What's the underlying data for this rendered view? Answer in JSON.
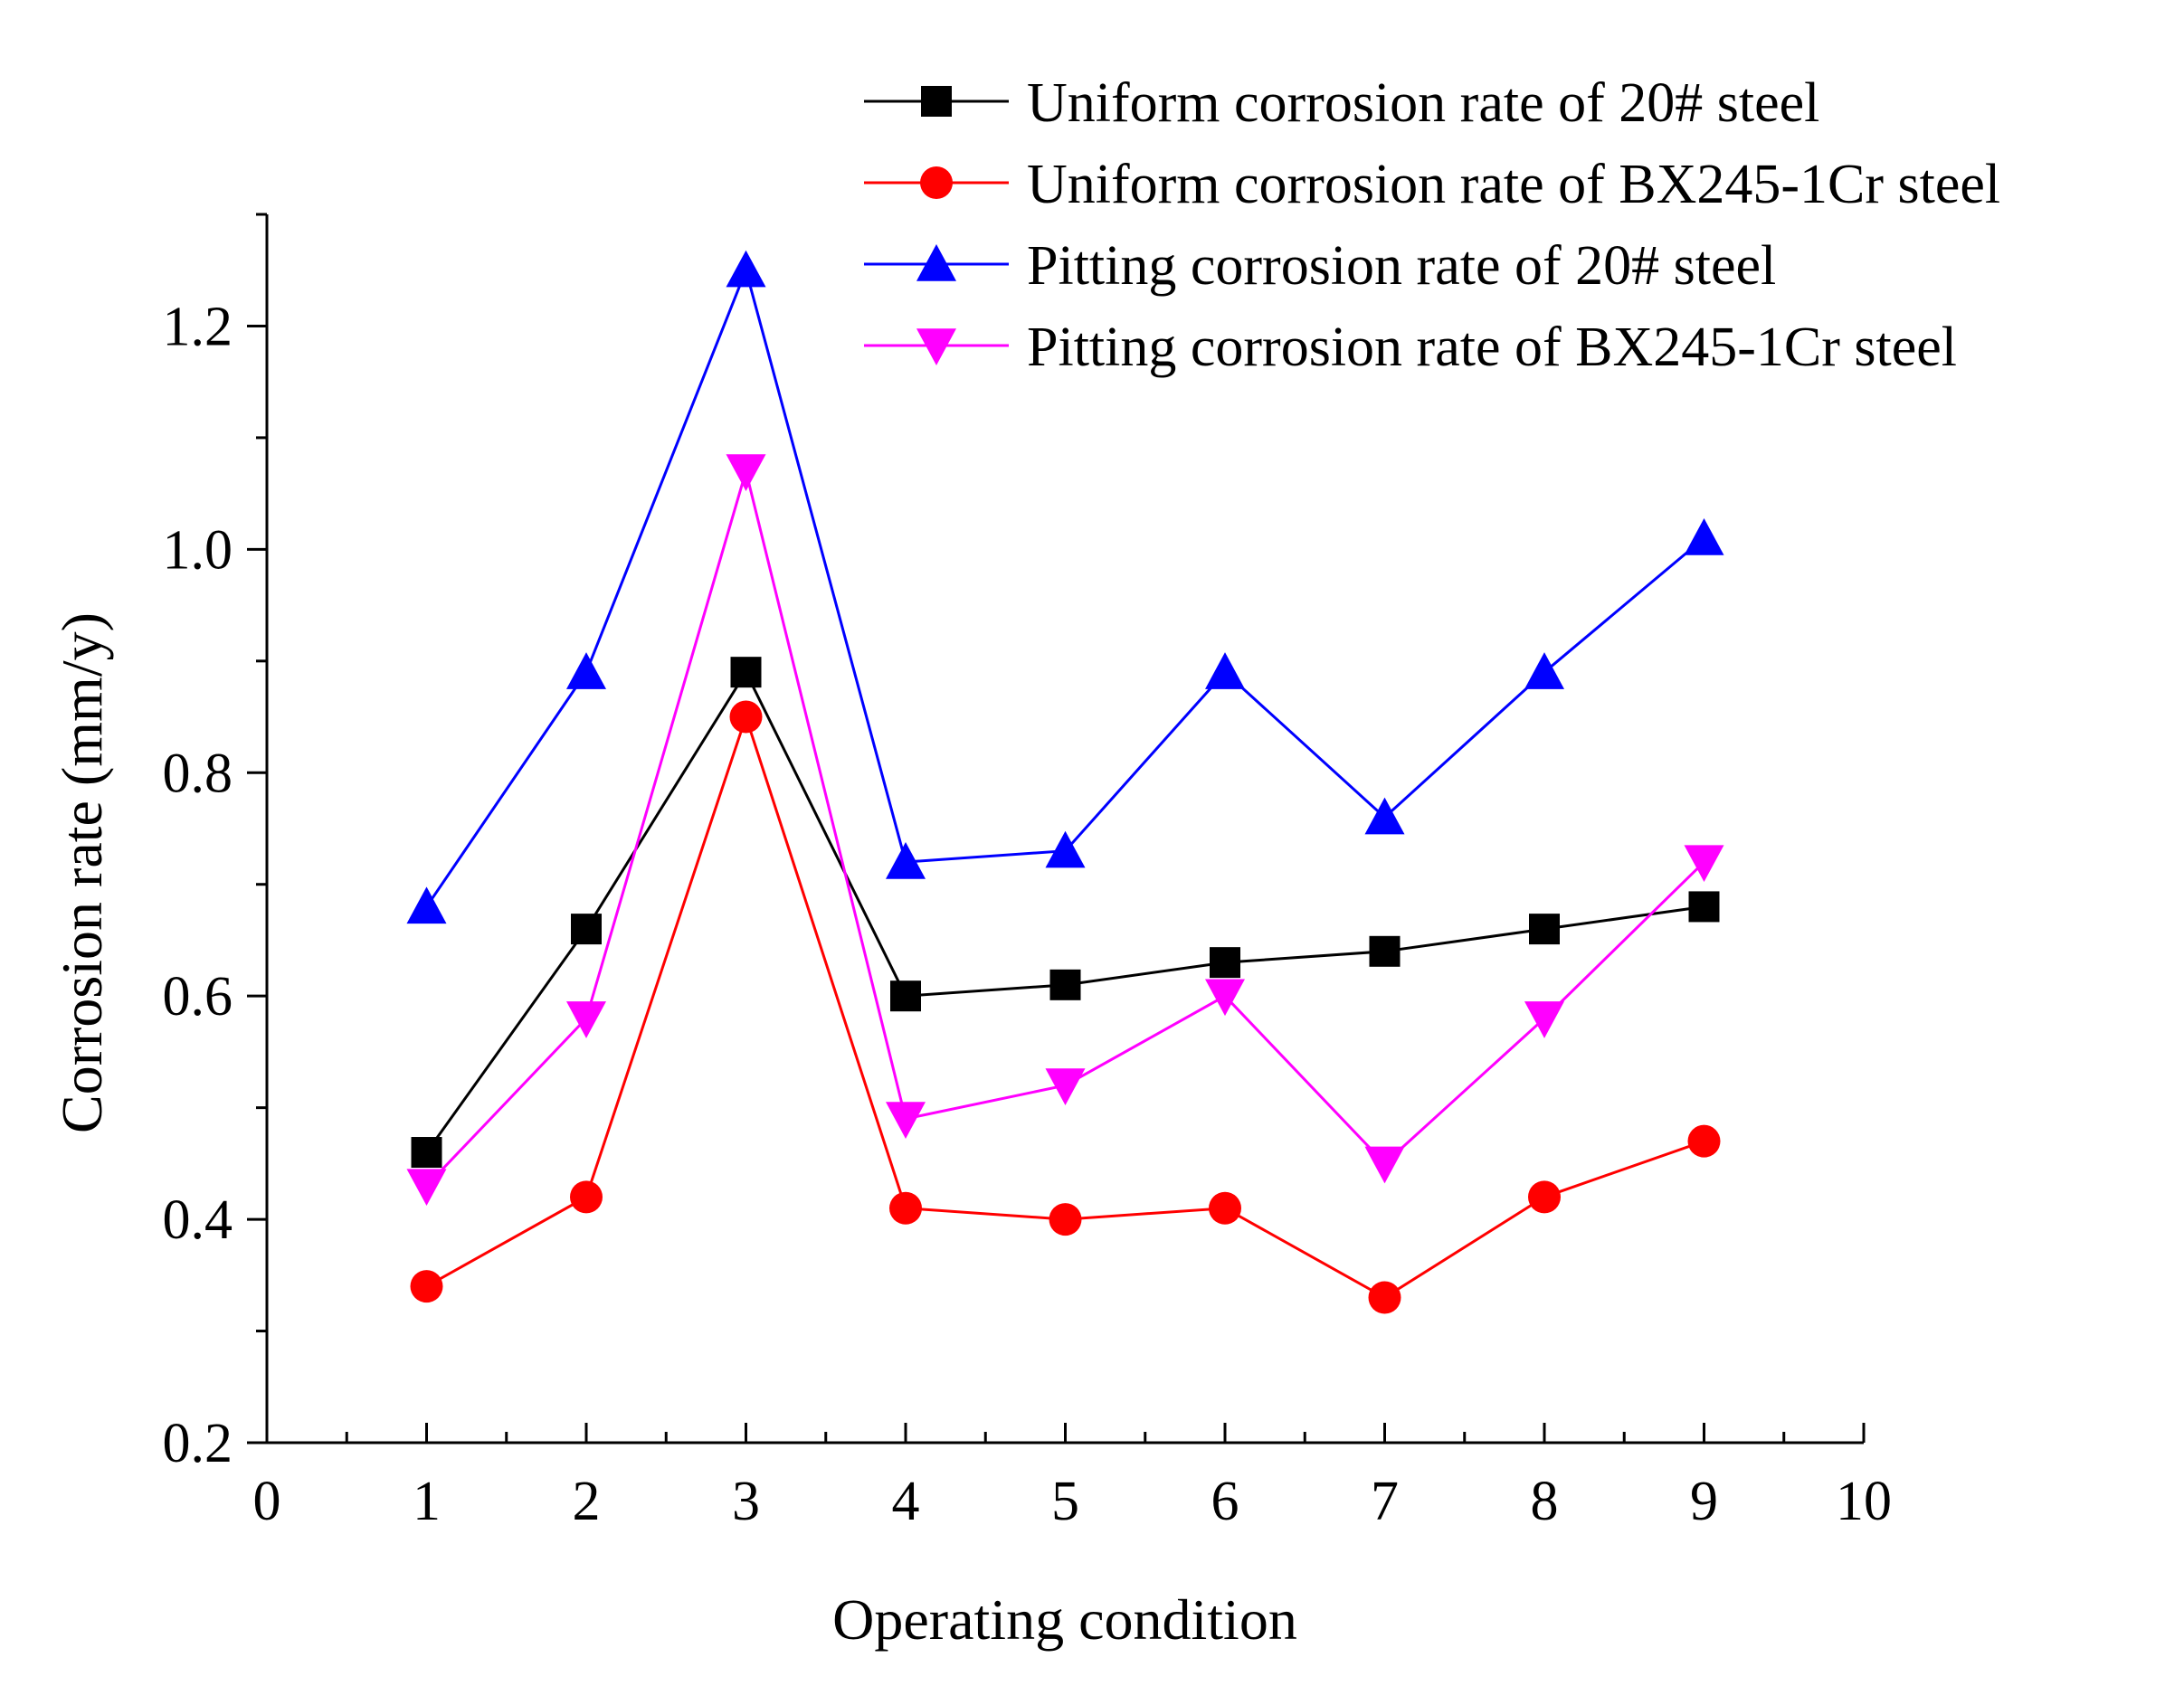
{
  "chart_data": {
    "type": "line",
    "title": "",
    "xlabel": "Operating condition",
    "ylabel": "Corrosion rate (mm/y)",
    "xlim": [
      0,
      10
    ],
    "ylim": [
      0.2,
      1.3
    ],
    "xticks": [
      0,
      1,
      2,
      3,
      4,
      5,
      6,
      7,
      8,
      9,
      10
    ],
    "xtick_labels": [
      "0",
      "1",
      "2",
      "3",
      "4",
      "5",
      "6",
      "7",
      "8",
      "9",
      "10"
    ],
    "yticks": [
      0.2,
      0.4,
      0.6,
      0.8,
      1.0,
      1.2
    ],
    "ytick_labels": [
      "0.2",
      "0.4",
      "0.6",
      "0.8",
      "1.0",
      "1.2"
    ],
    "grid": false,
    "legend_position": "top-right",
    "x": [
      1,
      2,
      3,
      4,
      5,
      6,
      7,
      8,
      9
    ],
    "series": [
      {
        "name": "Uniform corrosion rate of 20# steel",
        "color": "#000000",
        "marker": "square",
        "values": [
          0.46,
          0.66,
          0.89,
          0.6,
          0.61,
          0.63,
          0.64,
          0.66,
          0.68
        ]
      },
      {
        "name": "Uniform corrosion rate of BX245-1Cr steel",
        "color": "#ff0000",
        "marker": "circle",
        "values": [
          0.34,
          0.42,
          0.85,
          0.41,
          0.4,
          0.41,
          0.33,
          0.42,
          0.47
        ]
      },
      {
        "name": "Pitting corrosion rate of 20# steel",
        "color": "#0000ff",
        "marker": "triangle-up",
        "values": [
          0.68,
          0.89,
          1.25,
          0.72,
          0.73,
          0.89,
          0.76,
          0.89,
          1.01
        ]
      },
      {
        "name": "Pitting corrosion rate of BX245-1Cr steel",
        "color": "#ff00ff",
        "marker": "triangle-down",
        "values": [
          0.43,
          0.58,
          1.07,
          0.49,
          0.52,
          0.6,
          0.45,
          0.58,
          0.72
        ]
      }
    ]
  }
}
